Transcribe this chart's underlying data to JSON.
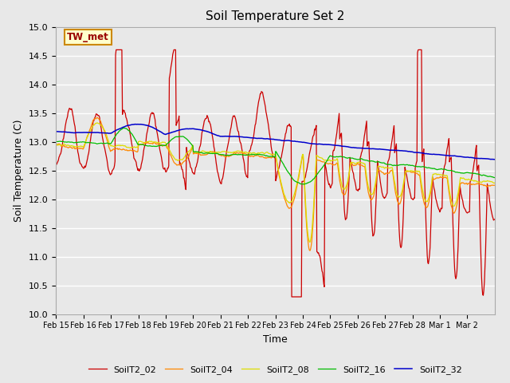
{
  "title": "Soil Temperature Set 2",
  "xlabel": "Time",
  "ylabel": "Soil Temperature (C)",
  "ylim": [
    10.0,
    15.0
  ],
  "yticks": [
    10.0,
    10.5,
    11.0,
    11.5,
    12.0,
    12.5,
    13.0,
    13.5,
    14.0,
    14.5,
    15.0
  ],
  "series_colors": {
    "SoilT2_02": "#cc0000",
    "SoilT2_04": "#ff8800",
    "SoilT2_08": "#dddd00",
    "SoilT2_16": "#00bb00",
    "SoilT2_32": "#0000cc"
  },
  "annotation_text": "TW_met",
  "annotation_color": "#990000",
  "annotation_bg": "#ffffcc",
  "annotation_border": "#cc8800",
  "bg_color": "#e0e0e0",
  "plot_bg_color": "#e8e8e8",
  "grid_color": "#ffffff",
  "tick_dates": [
    "Feb 15",
    "Feb 16",
    "Feb 17",
    "Feb 18",
    "Feb 19",
    "Feb 20",
    "Feb 21",
    "Feb 22",
    "Feb 23",
    "Feb 24",
    "Feb 25",
    "Feb 26",
    "Feb 27",
    "Feb 28",
    "Mar 1",
    "Mar 2"
  ],
  "n_days": 16
}
